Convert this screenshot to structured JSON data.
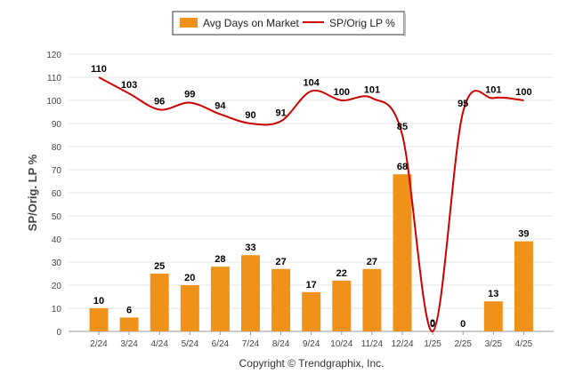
{
  "chart_data": {
    "type": "bar",
    "categories": [
      "2/24",
      "3/24",
      "4/24",
      "5/24",
      "6/24",
      "7/24",
      "8/24",
      "9/24",
      "10/24",
      "11/24",
      "12/24",
      "1/25",
      "2/25",
      "3/25",
      "4/25"
    ],
    "series": [
      {
        "name": "Avg Days on Market",
        "type": "bar",
        "color": "#f0921a",
        "values": [
          10,
          6,
          25,
          20,
          28,
          33,
          27,
          17,
          22,
          27,
          68,
          0,
          0,
          13,
          39
        ]
      },
      {
        "name": "SP/Orig LP %",
        "type": "line",
        "color": "#cc0000",
        "values": [
          110,
          103,
          96,
          99,
          94,
          90,
          91,
          104,
          100,
          101,
          85,
          0,
          95,
          101,
          100
        ]
      }
    ],
    "ylabel": "SP/Orig. LP %",
    "ylim": [
      0,
      120
    ],
    "yticks": [
      0,
      10,
      20,
      30,
      40,
      50,
      60,
      70,
      80,
      90,
      100,
      110,
      120
    ],
    "grid": true,
    "legend_position": "top-center"
  },
  "footer": {
    "copyright": "Copyright © Trendgraphix, Inc."
  }
}
